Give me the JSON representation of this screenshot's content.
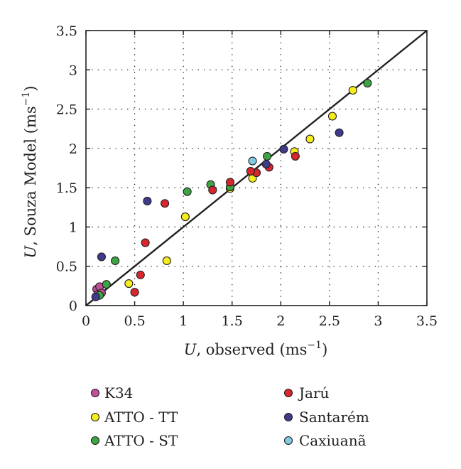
{
  "chart_data": {
    "type": "scatter",
    "xlabel": {
      "var": "U",
      "text": ", observed (ms",
      "sup": "−1",
      "close": ")"
    },
    "ylabel": {
      "var": "U",
      "text": ", Souza Model (ms",
      "sup": "−1",
      "close": ")"
    },
    "xlim": [
      0,
      3.5
    ],
    "ylim": [
      0,
      3.5
    ],
    "xticks": [
      0,
      0.5,
      1,
      1.5,
      2,
      2.5,
      3,
      3.5
    ],
    "yticks": [
      0,
      0.5,
      1,
      1.5,
      2,
      2.5,
      3,
      3.5
    ],
    "xtick_labels": [
      "0",
      "0.5",
      "1",
      "1.5",
      "2",
      "2.5",
      "3",
      "3.5"
    ],
    "ytick_labels": [
      "0",
      "0.5",
      "1",
      "1.5",
      "2",
      "2.5",
      "3",
      "3.5"
    ],
    "grid": true,
    "reference_line": {
      "from": [
        0,
        0
      ],
      "to": [
        3.5,
        3.5
      ]
    },
    "legend_placement": "bottom",
    "series": [
      {
        "name": "K34",
        "color": "#c0509a",
        "points": [
          [
            0.11,
            0.21
          ],
          [
            0.14,
            0.24
          ],
          [
            0.12,
            0.14
          ],
          [
            0.16,
            0.16
          ]
        ]
      },
      {
        "name": "ATTO - TT",
        "color": "#f4ee1c",
        "points": [
          [
            0.44,
            0.28
          ],
          [
            0.83,
            0.57
          ],
          [
            1.02,
            1.13
          ],
          [
            1.48,
            1.49
          ],
          [
            1.71,
            1.62
          ],
          [
            2.14,
            1.96
          ],
          [
            2.3,
            2.12
          ],
          [
            2.53,
            2.41
          ],
          [
            2.74,
            2.74
          ]
        ]
      },
      {
        "name": "ATTO - ST",
        "color": "#3da544",
        "points": [
          [
            0.21,
            0.27
          ],
          [
            0.3,
            0.57
          ],
          [
            1.04,
            1.45
          ],
          [
            1.28,
            1.54
          ],
          [
            1.48,
            1.51
          ],
          [
            1.86,
            1.9
          ],
          [
            2.89,
            2.83
          ],
          [
            0.14,
            0.13
          ]
        ]
      },
      {
        "name": "Jarú",
        "color": "#d7262c",
        "points": [
          [
            0.5,
            0.17
          ],
          [
            0.56,
            0.39
          ],
          [
            0.61,
            0.8
          ],
          [
            0.81,
            1.3
          ],
          [
            1.3,
            1.47
          ],
          [
            1.48,
            1.57
          ],
          [
            1.75,
            1.69
          ],
          [
            1.88,
            1.76
          ],
          [
            2.15,
            1.9
          ],
          [
            1.69,
            1.71
          ]
        ]
      },
      {
        "name": "Santarém",
        "color": "#3f3a8c",
        "points": [
          [
            0.16,
            0.62
          ],
          [
            0.63,
            1.33
          ],
          [
            2.03,
            1.99
          ],
          [
            1.85,
            1.8
          ],
          [
            2.6,
            2.2
          ],
          [
            0.1,
            0.11
          ]
        ]
      },
      {
        "name": "Caxiuanã",
        "color": "#7fcbe1",
        "points": [
          [
            1.71,
            1.84
          ]
        ]
      }
    ]
  }
}
